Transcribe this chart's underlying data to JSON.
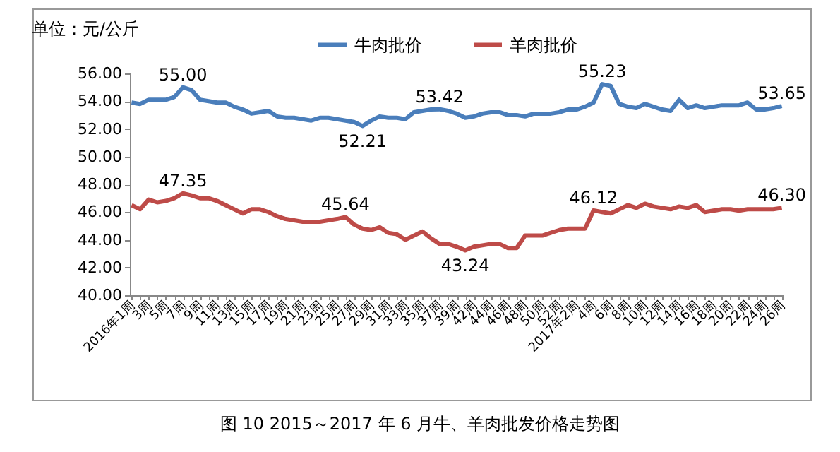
{
  "chart_data": {
    "type": "line",
    "ylabel": "单位：元/公斤",
    "annotations": [
      "图 10   2015～2017 年 6 月牛、羊肉批发价格走势图"
    ],
    "categories": [
      "2016年1周",
      null,
      "3周",
      null,
      "5周",
      null,
      "7周",
      null,
      "9周",
      null,
      "11周",
      null,
      "13周",
      null,
      "15周",
      null,
      "17周",
      null,
      "19周",
      null,
      "21周",
      null,
      "23周",
      null,
      "25周",
      null,
      "27周",
      null,
      "29周",
      null,
      "31周",
      null,
      "33周",
      null,
      "35周",
      null,
      "37周",
      null,
      "39周",
      null,
      "42周",
      null,
      "44周",
      null,
      "46周",
      null,
      "48周",
      null,
      "50周",
      null,
      "52周",
      null,
      "2017年2周",
      null,
      "4周",
      null,
      "6周",
      null,
      "8周",
      null,
      "10周",
      null,
      "12周",
      null,
      "14周",
      null,
      "16周",
      null,
      "18周",
      null,
      "20周",
      null,
      "22周",
      null,
      "24周",
      null,
      "26周"
    ],
    "series": [
      {
        "name": "牛肉批价",
        "color": "#4a7ebb",
        "values": [
          53.9,
          53.8,
          54.1,
          54.1,
          54.1,
          54.3,
          55.0,
          54.8,
          54.1,
          54.0,
          53.9,
          53.9,
          53.6,
          53.4,
          53.1,
          53.2,
          53.3,
          52.9,
          52.8,
          52.8,
          52.7,
          52.6,
          52.8,
          52.8,
          52.7,
          52.6,
          52.5,
          52.21,
          52.6,
          52.9,
          52.8,
          52.8,
          52.7,
          53.2,
          53.3,
          53.4,
          53.42,
          53.3,
          53.1,
          52.8,
          52.9,
          53.1,
          53.2,
          53.2,
          53.0,
          53.0,
          52.9,
          53.1,
          53.1,
          53.1,
          53.2,
          53.4,
          53.4,
          53.6,
          53.9,
          55.23,
          55.1,
          53.8,
          53.6,
          53.5,
          53.8,
          53.6,
          53.4,
          53.3,
          54.1,
          53.5,
          53.7,
          53.5,
          53.6,
          53.7,
          53.7,
          53.7,
          53.9,
          53.4,
          53.4,
          53.5,
          53.65
        ],
        "value_labels": [
          null,
          null,
          null,
          null,
          null,
          null,
          "55.00",
          null,
          null,
          null,
          null,
          null,
          null,
          null,
          null,
          null,
          null,
          null,
          null,
          null,
          null,
          null,
          null,
          null,
          null,
          null,
          null,
          "52.21",
          null,
          null,
          null,
          null,
          null,
          null,
          null,
          null,
          "53.42",
          null,
          null,
          null,
          null,
          null,
          null,
          null,
          null,
          null,
          null,
          null,
          null,
          null,
          null,
          null,
          null,
          null,
          null,
          "55.23",
          null,
          null,
          null,
          null,
          null,
          null,
          null,
          null,
          null,
          null,
          null,
          null,
          null,
          null,
          null,
          null,
          null,
          null,
          null,
          null,
          "53.65"
        ]
      },
      {
        "name": "羊肉批价",
        "color": "#be4b48",
        "values": [
          46.5,
          46.2,
          46.9,
          46.7,
          46.8,
          47.0,
          47.35,
          47.2,
          47.0,
          47.0,
          46.8,
          46.5,
          46.2,
          45.9,
          46.2,
          46.2,
          46.0,
          45.7,
          45.5,
          45.4,
          45.3,
          45.3,
          45.3,
          45.4,
          45.5,
          45.64,
          45.1,
          44.8,
          44.7,
          44.9,
          44.5,
          44.4,
          44.0,
          44.3,
          44.6,
          44.1,
          43.7,
          43.7,
          43.5,
          43.24,
          43.5,
          43.6,
          43.7,
          43.7,
          43.4,
          43.4,
          44.3,
          44.3,
          44.3,
          44.5,
          44.7,
          44.8,
          44.8,
          44.8,
          46.12,
          46.0,
          45.9,
          46.2,
          46.5,
          46.3,
          46.6,
          46.4,
          46.3,
          46.2,
          46.4,
          46.3,
          46.5,
          46.0,
          46.1,
          46.2,
          46.2,
          46.1,
          46.2,
          46.2,
          46.2,
          46.2,
          46.3
        ],
        "value_labels": [
          null,
          null,
          null,
          null,
          null,
          null,
          "47.35",
          null,
          null,
          null,
          null,
          null,
          null,
          null,
          null,
          null,
          null,
          null,
          null,
          null,
          null,
          null,
          null,
          null,
          null,
          "45.64",
          null,
          null,
          null,
          null,
          null,
          null,
          null,
          null,
          null,
          null,
          null,
          null,
          null,
          "43.24",
          null,
          null,
          null,
          null,
          null,
          null,
          null,
          null,
          null,
          null,
          null,
          null,
          null,
          null,
          "46.12",
          null,
          null,
          null,
          null,
          null,
          null,
          null,
          null,
          null,
          null,
          null,
          null,
          null,
          null,
          null,
          null,
          null,
          null,
          null,
          null,
          null,
          "46.30"
        ]
      }
    ],
    "ylim": [
      40,
      56
    ],
    "yticks": [
      {
        "value": 40,
        "label": "40.00"
      },
      {
        "value": 42,
        "label": "42.00"
      },
      {
        "value": 44,
        "label": "44.00"
      },
      {
        "value": 46,
        "label": "46.00"
      },
      {
        "value": 48,
        "label": "48.00"
      },
      {
        "value": 50,
        "label": "50.00"
      },
      {
        "value": 52,
        "label": "52.00"
      },
      {
        "value": 54,
        "label": "54.00"
      },
      {
        "value": 56,
        "label": "56.00"
      }
    ],
    "legend": "top"
  }
}
